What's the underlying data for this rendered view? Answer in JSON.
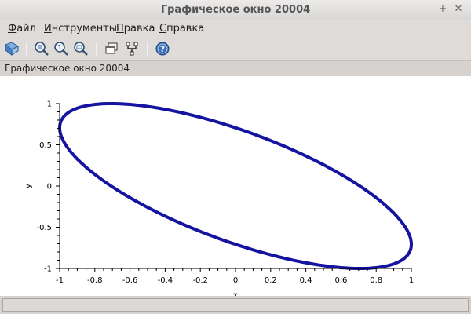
{
  "window": {
    "title": "Графическое окно 20004",
    "minimize_glyph": "–",
    "maximize_glyph": "+",
    "close_glyph": "✕"
  },
  "menu": {
    "items": [
      {
        "underlined": "Ф",
        "rest": "айл"
      },
      {
        "underlined": "И",
        "rest": "нструменты"
      },
      {
        "underlined": "П",
        "rest": "равка"
      },
      {
        "underlined": "С",
        "rest": "правка"
      }
    ]
  },
  "toolbar": {
    "icons": [
      "rotate-icon",
      "zoom-grid-icon",
      "zoom-in-icon",
      "zoom-out-icon",
      "window-icon",
      "datatip-icon",
      "help-icon"
    ]
  },
  "figure_label": "Графическое окно 20004",
  "colors": {
    "curve": "#1414a0",
    "axis": "#000000"
  },
  "chart_data": {
    "type": "line",
    "title": "",
    "xlabel": "x",
    "ylabel": "y",
    "xlim": [
      -1,
      1
    ],
    "ylim": [
      -1,
      1
    ],
    "x_ticks": [
      "-1",
      "-0.8",
      "-0.6",
      "-0.4",
      "-0.2",
      "0",
      "0.2",
      "0.4",
      "0.6",
      "0.8",
      "1"
    ],
    "y_ticks": [
      "1",
      "0.5",
      "0",
      "-0.5",
      "-1"
    ],
    "grid": false,
    "series": [
      {
        "curve": "ellipse",
        "x": [
          1,
          0.866,
          0.5,
          0,
          -0.5,
          -0.866,
          -1,
          -0.866,
          -0.5,
          0,
          0.5,
          0.866,
          1
        ],
        "y": [
          -0.707,
          -0.966,
          -0.966,
          -0.707,
          -0.259,
          0.259,
          0.707,
          0.966,
          0.966,
          0.707,
          0.259,
          -0.259,
          -0.707
        ]
      }
    ]
  },
  "status": {
    "text": ""
  }
}
